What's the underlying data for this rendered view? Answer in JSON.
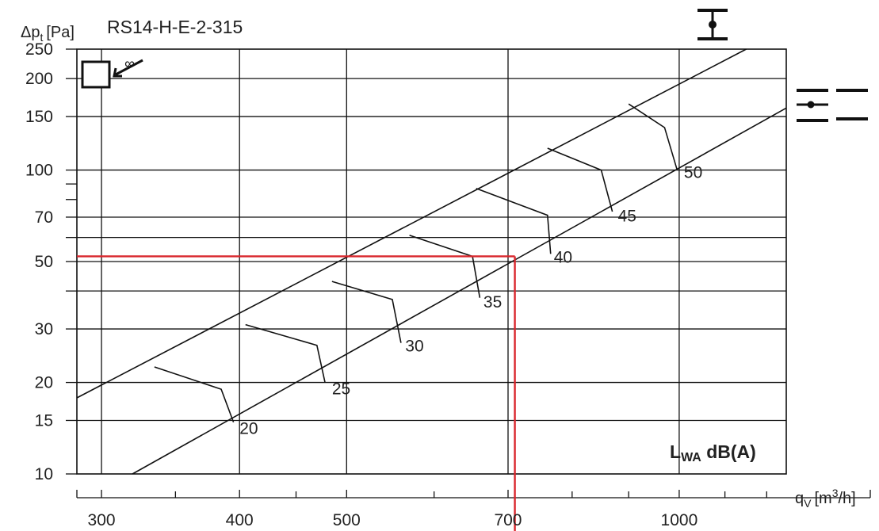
{
  "chart_data": {
    "type": "line",
    "title": "RS14-H-E-2-315",
    "ylabel": "Δp",
    "ylabel_sub": "t",
    "ylabel_unit": "[Pa]",
    "xlabel": "q",
    "xlabel_sub": "V",
    "xlabel_unit": "[m",
    "xlabel_sup": "3",
    "xlabel_unit_end": "/h]",
    "scale": "log-log",
    "xlim": [
      285,
      1250
    ],
    "ylim": [
      10,
      250
    ],
    "x_ticks": [
      {
        "value": 300,
        "label": "300",
        "major": true
      },
      {
        "value": 350,
        "label": "",
        "major": false
      },
      {
        "value": 400,
        "label": "400",
        "major": true
      },
      {
        "value": 450,
        "label": "",
        "major": false
      },
      {
        "value": 500,
        "label": "500",
        "major": true
      },
      {
        "value": 600,
        "label": "",
        "major": false
      },
      {
        "value": 700,
        "label": "700",
        "major": true
      },
      {
        "value": 800,
        "label": "",
        "major": false
      },
      {
        "value": 900,
        "label": "",
        "major": false
      },
      {
        "value": 1000,
        "label": "1000",
        "major": true
      },
      {
        "value": 1100,
        "label": "",
        "major": false
      },
      {
        "value": 1200,
        "label": "",
        "major": false
      }
    ],
    "x_grid": [
      300,
      400,
      500,
      700,
      1000
    ],
    "y_ticks": [
      {
        "value": 10,
        "label": "10"
      },
      {
        "value": 15,
        "label": "15"
      },
      {
        "value": 20,
        "label": "20"
      },
      {
        "value": 30,
        "label": "30"
      },
      {
        "value": 40,
        "label": ""
      },
      {
        "value": 50,
        "label": "50"
      },
      {
        "value": 60,
        "label": ""
      },
      {
        "value": 70,
        "label": "70"
      },
      {
        "value": 80,
        "label": ""
      },
      {
        "value": 90,
        "label": ""
      },
      {
        "value": 100,
        "label": "100"
      },
      {
        "value": 150,
        "label": "150"
      },
      {
        "value": 200,
        "label": "200"
      },
      {
        "value": 250,
        "label": "250"
      }
    ],
    "y_grid": [
      15,
      20,
      30,
      40,
      50,
      60,
      70,
      100,
      150,
      200
    ],
    "boundary_lines": [
      {
        "x": [
          285,
          1150
        ],
        "y": [
          17.8,
          250
        ]
      },
      {
        "x": [
          320,
          1250
        ],
        "y": [
          10,
          160
        ]
      }
    ],
    "series": [
      {
        "name": "20",
        "x": [
          335,
          385,
          395
        ],
        "y": [
          22.5,
          19,
          14.8
        ]
      },
      {
        "name": "25",
        "x": [
          405,
          470,
          478
        ],
        "y": [
          31,
          26.5,
          20
        ]
      },
      {
        "name": "30",
        "x": [
          485,
          550,
          560
        ],
        "y": [
          43,
          37.5,
          27
        ]
      },
      {
        "name": "35",
        "x": [
          570,
          650,
          660
        ],
        "y": [
          61,
          52,
          38
        ]
      },
      {
        "name": "40",
        "x": [
          655,
          760,
          765
        ],
        "y": [
          87,
          71,
          53
        ]
      },
      {
        "name": "45",
        "x": [
          760,
          850,
          870
        ],
        "y": [
          118,
          100,
          73
        ]
      },
      {
        "name": "50",
        "x": [
          900,
          970,
          995
        ],
        "y": [
          165,
          138,
          101
        ]
      }
    ],
    "level_labels": [
      {
        "text": "20",
        "x": 400,
        "y": 14.2
      },
      {
        "text": "25",
        "x": 485,
        "y": 19.2
      },
      {
        "text": "30",
        "x": 565,
        "y": 26.5
      },
      {
        "text": "35",
        "x": 665,
        "y": 37
      },
      {
        "text": "40",
        "x": 770,
        "y": 52
      },
      {
        "text": "45",
        "x": 880,
        "y": 71
      },
      {
        "text": "50",
        "x": 1010,
        "y": 99
      }
    ],
    "operating_point": {
      "x": 710,
      "y": 52
    },
    "annotation": {
      "main": "L",
      "sub": "WA",
      "rest": " dB(A)"
    },
    "colors": {
      "grid": "#111111",
      "curves": "#111111",
      "operating_point": "#d9262c"
    }
  },
  "icons": {
    "top_right": "fan-symbol-icon",
    "side_right": "duct-fan-icon",
    "top_left": "duct-inlet-icon"
  }
}
